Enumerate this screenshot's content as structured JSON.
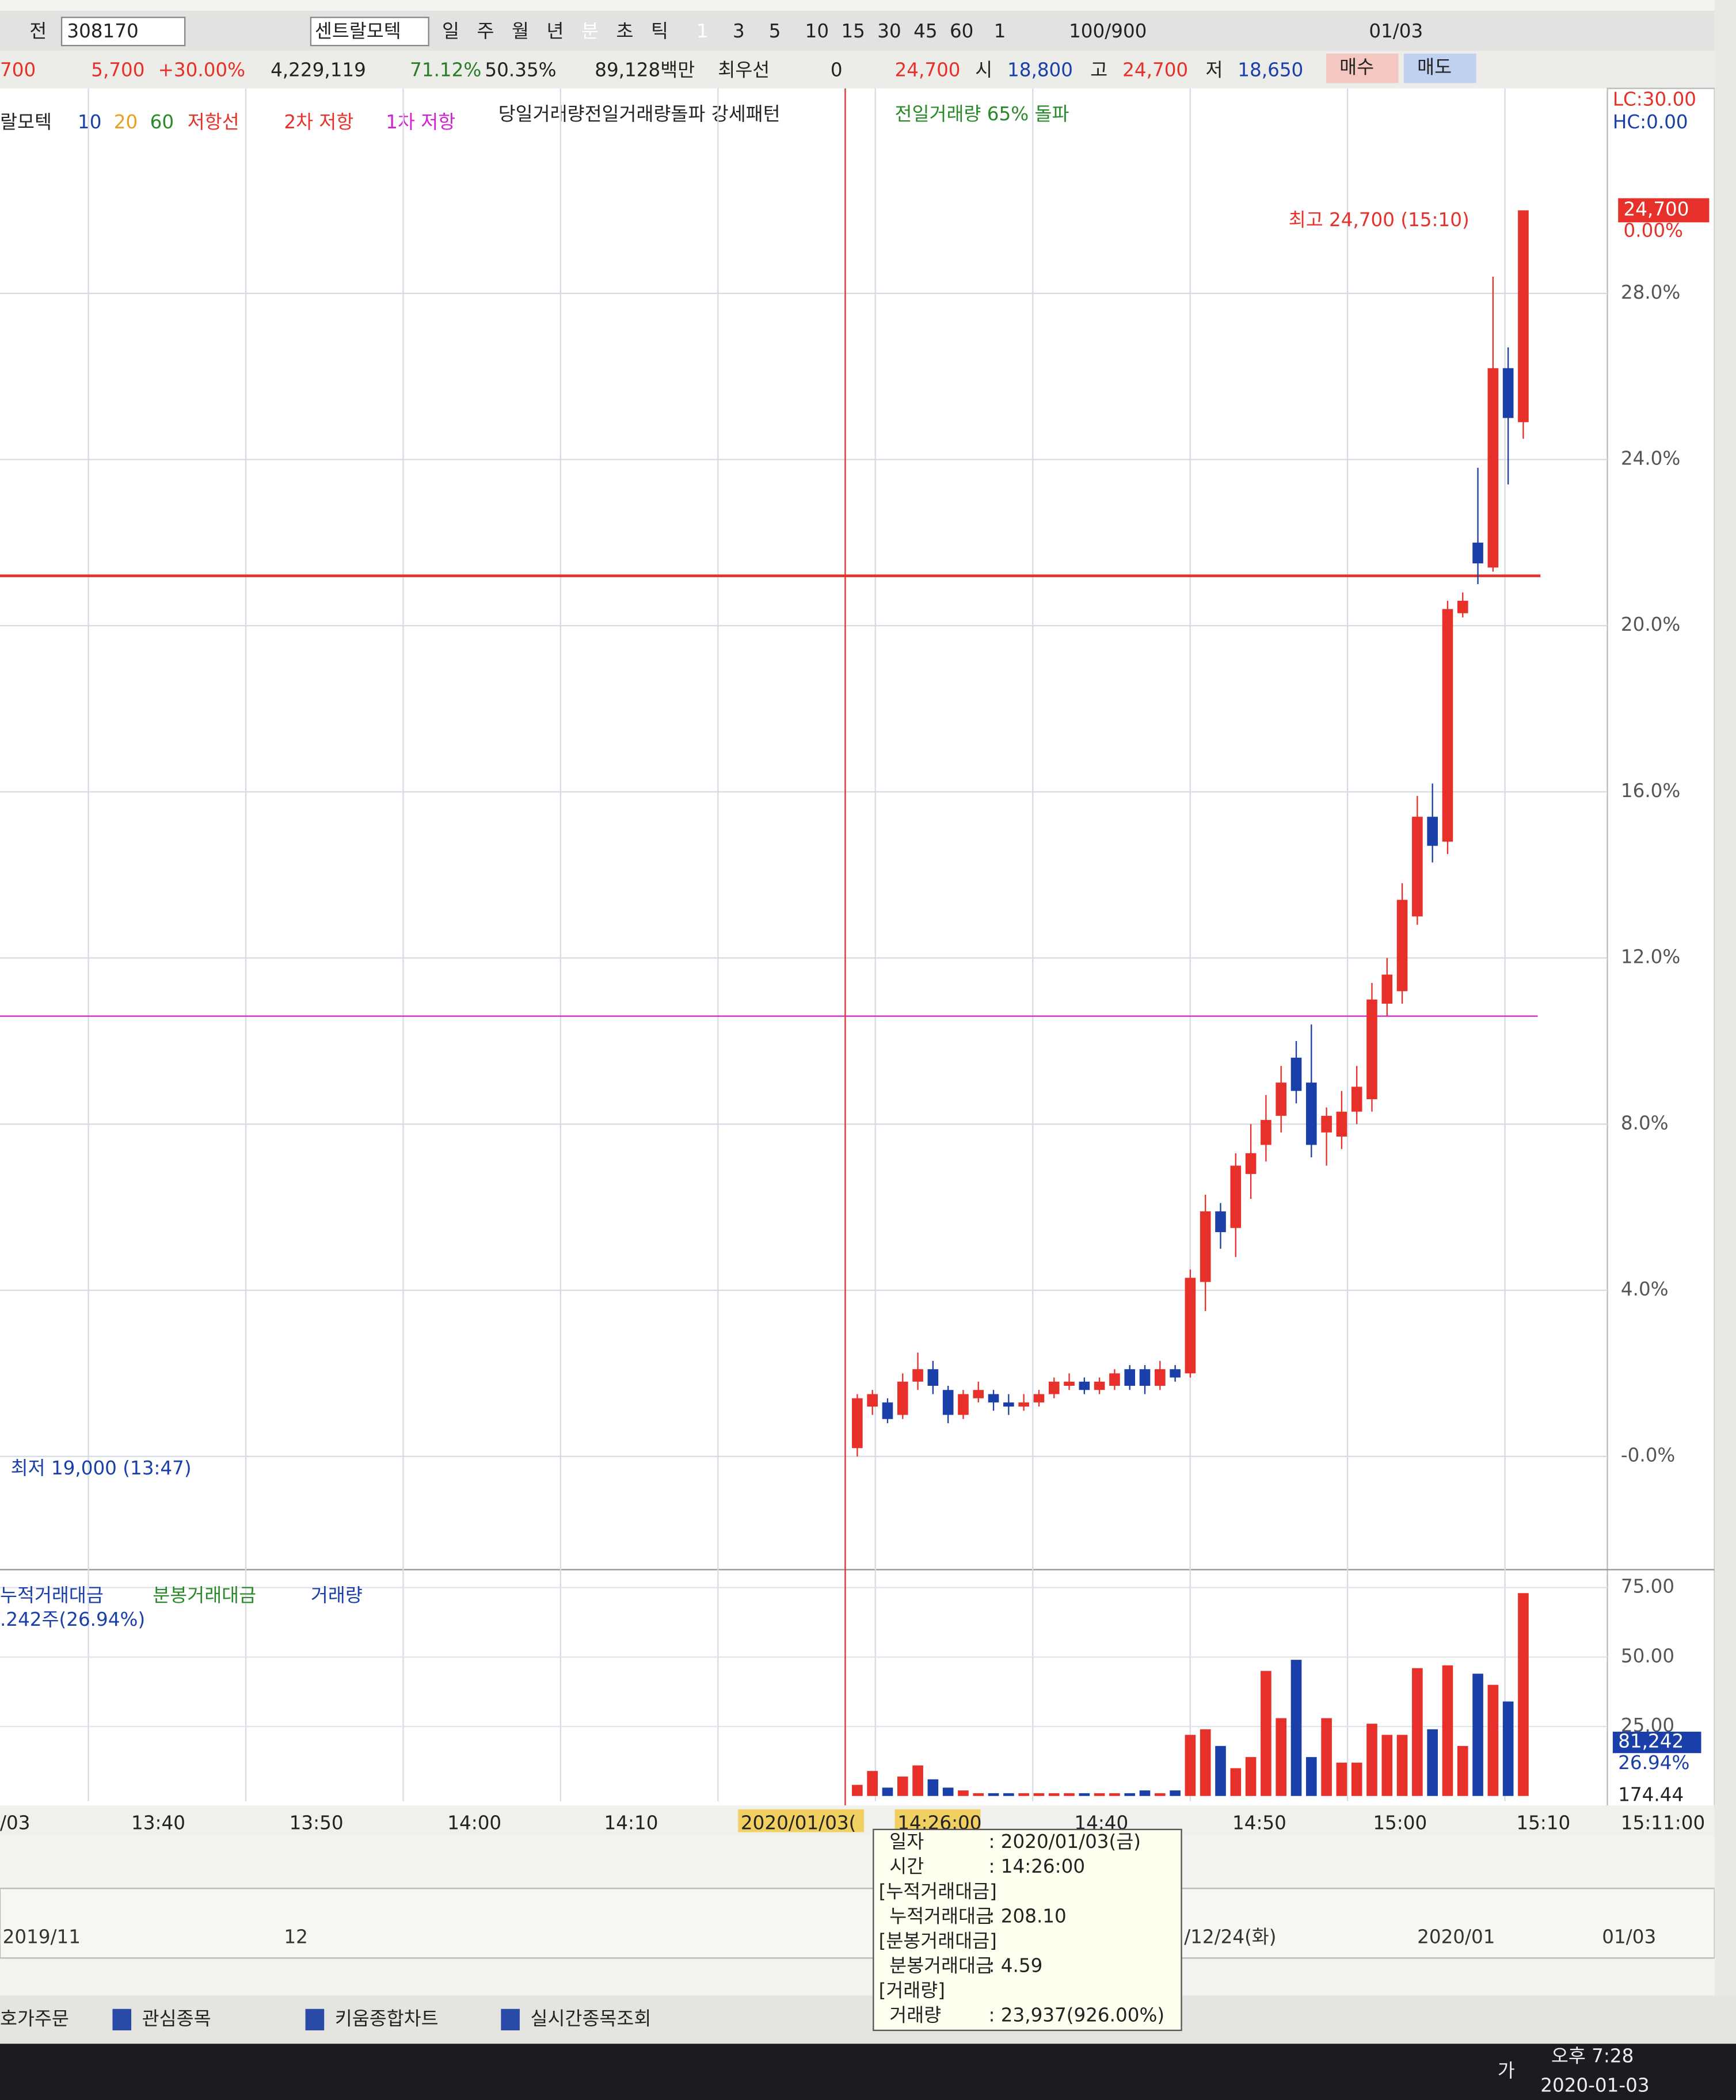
{
  "toolbar": {
    "prefix": "전",
    "code": "308170",
    "name": "센트랄모텍",
    "periods": [
      "일",
      "주",
      "월",
      "년",
      "분",
      "초",
      "틱"
    ],
    "intervals": [
      "1",
      "3",
      "5",
      "10",
      "15",
      "30",
      "45",
      "60"
    ],
    "unit": "1",
    "count": "100/900",
    "date": "01/03"
  },
  "quote": {
    "price": "700",
    "change": "5,700",
    "rate": "+30.00%",
    "volume": "4,229,119",
    "ratio1": "71.12%",
    "ratio2": "50.35%",
    "cap": "89,128백만",
    "status": "최우선",
    "qty": "0",
    "current": "24,700",
    "open_label": "시",
    "open": "18,800",
    "high_label": "고",
    "high": "24,700",
    "low_label": "저",
    "low": "18,650",
    "buy": "매수",
    "sell": "매도"
  },
  "legend": {
    "stock": "랄모텍",
    "ma": [
      {
        "name": "10",
        "color": "#1a3fa8"
      },
      {
        "name": "20",
        "color": "#e8a020"
      },
      {
        "name": "60",
        "color": "#2a8a2a"
      }
    ],
    "resistance": "저항선",
    "pattern1": "당일거래량전일거래량돌파 강세패턴",
    "pattern2": "전일거래량 65% 돌파"
  },
  "chart_data": {
    "type": "candlestick",
    "open": [
      0.2,
      1.2,
      1.3,
      1.0,
      1.8,
      2.1,
      1.6,
      1.0,
      1.4,
      1.5,
      1.3,
      1.2,
      1.3,
      1.5,
      1.7,
      1.8,
      1.6,
      1.7,
      2.1,
      2.1,
      1.7,
      2.1,
      2.0,
      4.2,
      5.9,
      5.5,
      6.8,
      7.5,
      8.2,
      9.6,
      9.0,
      7.8,
      7.7,
      8.3,
      8.6,
      10.9,
      11.2,
      13.0,
      15.4,
      14.8,
      20.3,
      22.0,
      21.4,
      26.2,
      24.9
    ],
    "high": [
      1.5,
      1.6,
      1.4,
      2.0,
      2.5,
      2.3,
      1.7,
      1.6,
      1.8,
      1.6,
      1.5,
      1.5,
      1.6,
      1.9,
      2.0,
      1.9,
      1.9,
      2.1,
      2.2,
      2.2,
      2.3,
      2.2,
      4.5,
      6.3,
      6.1,
      7.3,
      8.0,
      8.7,
      9.4,
      10.0,
      10.4,
      8.4,
      8.8,
      9.4,
      11.4,
      12.0,
      13.8,
      15.9,
      16.2,
      20.6,
      20.8,
      23.8,
      28.4,
      26.7,
      30.0
    ],
    "low": [
      0.0,
      1.0,
      0.8,
      0.9,
      1.6,
      1.5,
      0.8,
      0.9,
      1.3,
      1.1,
      1.0,
      1.1,
      1.2,
      1.4,
      1.6,
      1.5,
      1.5,
      1.6,
      1.6,
      1.5,
      1.6,
      1.8,
      1.9,
      3.5,
      5.0,
      4.8,
      6.2,
      7.1,
      7.8,
      8.5,
      7.2,
      7.0,
      7.4,
      8.0,
      8.3,
      10.6,
      10.9,
      12.8,
      14.3,
      14.5,
      20.2,
      21.0,
      21.3,
      23.4,
      24.5
    ],
    "close": [
      1.4,
      1.5,
      0.9,
      1.8,
      2.1,
      1.7,
      1.0,
      1.5,
      1.6,
      1.3,
      1.2,
      1.3,
      1.5,
      1.8,
      1.8,
      1.6,
      1.8,
      2.0,
      1.7,
      1.7,
      2.1,
      1.9,
      4.3,
      5.9,
      5.4,
      7.0,
      7.3,
      8.1,
      9.0,
      8.8,
      7.5,
      8.2,
      8.3,
      8.9,
      11.0,
      11.6,
      13.4,
      15.4,
      14.7,
      20.4,
      20.6,
      21.5,
      26.2,
      25.0,
      30.0
    ],
    "ylim": [
      -2.5,
      32
    ],
    "yticks": [
      {
        "value": 28,
        "label": "28.0%"
      },
      {
        "value": 24,
        "label": "24.0%"
      },
      {
        "value": 20,
        "label": "20.0%"
      },
      {
        "value": 16,
        "label": "16.0%"
      },
      {
        "value": 12,
        "label": "12.0%"
      },
      {
        "value": 8,
        "label": "8.0%"
      },
      {
        "value": 4,
        "label": "4.0%"
      },
      {
        "value": 0,
        "label": "-0.0%"
      }
    ],
    "up_color": "#e8302a",
    "down_color": "#1a3fa8",
    "resistance_lines": [
      {
        "label": "2차 저항",
        "value": 21.2,
        "color": "#e8302a"
      },
      {
        "label": "1차 저항",
        "value": 10.6,
        "color": "#d020d0"
      }
    ],
    "max_label": "최고 24,700 (15:10)",
    "min_label": "최저 19,000 (13:47)",
    "right_labels": {
      "lc": "LC:30.00",
      "hc": "HC:0.00",
      "price": "24,700",
      "rate": "0.00%"
    },
    "volume": {
      "values": [
        4,
        9,
        3,
        7,
        11,
        6,
        3,
        2,
        1,
        1,
        1,
        1,
        1,
        1,
        1,
        1,
        1,
        1,
        1,
        2,
        1,
        2,
        22,
        24,
        18,
        10,
        14,
        45,
        28,
        49,
        14,
        28,
        12,
        12,
        26,
        22,
        22,
        46,
        24,
        47,
        18,
        44,
        40,
        34,
        73
      ],
      "ylim": [
        0,
        80
      ],
      "yticks": [
        {
          "value": 75,
          "label": "75.00"
        },
        {
          "value": 50,
          "label": "50.00"
        },
        {
          "value": 25,
          "label": "25.00"
        }
      ],
      "legend": [
        "누적거래대금",
        "분봉거래대금",
        "거래량"
      ],
      "info": ".242주(26.94%)",
      "right_labels": [
        "81,242",
        "26.94%",
        "174.44"
      ]
    },
    "time_labels": [
      "/03",
      "13:40",
      "13:50",
      "14:00",
      "14:10",
      "2020/01/03(",
      "14:26:00",
      "14:40",
      "14:50",
      "15:00",
      "15:10",
      "15:11:00"
    ]
  },
  "tooltip": {
    "rows": [
      [
        "일자",
        ": 2020/01/03(금)"
      ],
      [
        "시간",
        ": 14:26:00"
      ],
      [
        "[누적거래대금]",
        ""
      ],
      [
        "누적거래대금",
        ": 208.10"
      ],
      [
        "[분봉거래대금]",
        ""
      ],
      [
        "분봉거래대금",
        ": 4.59"
      ],
      [
        "[거래량]",
        ""
      ],
      [
        "거래량",
        ": 23,937(926.00%)"
      ]
    ]
  },
  "overview": {
    "labels": [
      "2019/11",
      "12",
      "/12/24(화)",
      "2020/01",
      "01/03"
    ]
  },
  "taskbar": {
    "tabs": [
      "호가주문",
      "관심종목",
      "키움종합차트",
      "실시간종목조회"
    ],
    "ime": "가",
    "time": "오후 7:28",
    "date": "2020-01-03"
  }
}
